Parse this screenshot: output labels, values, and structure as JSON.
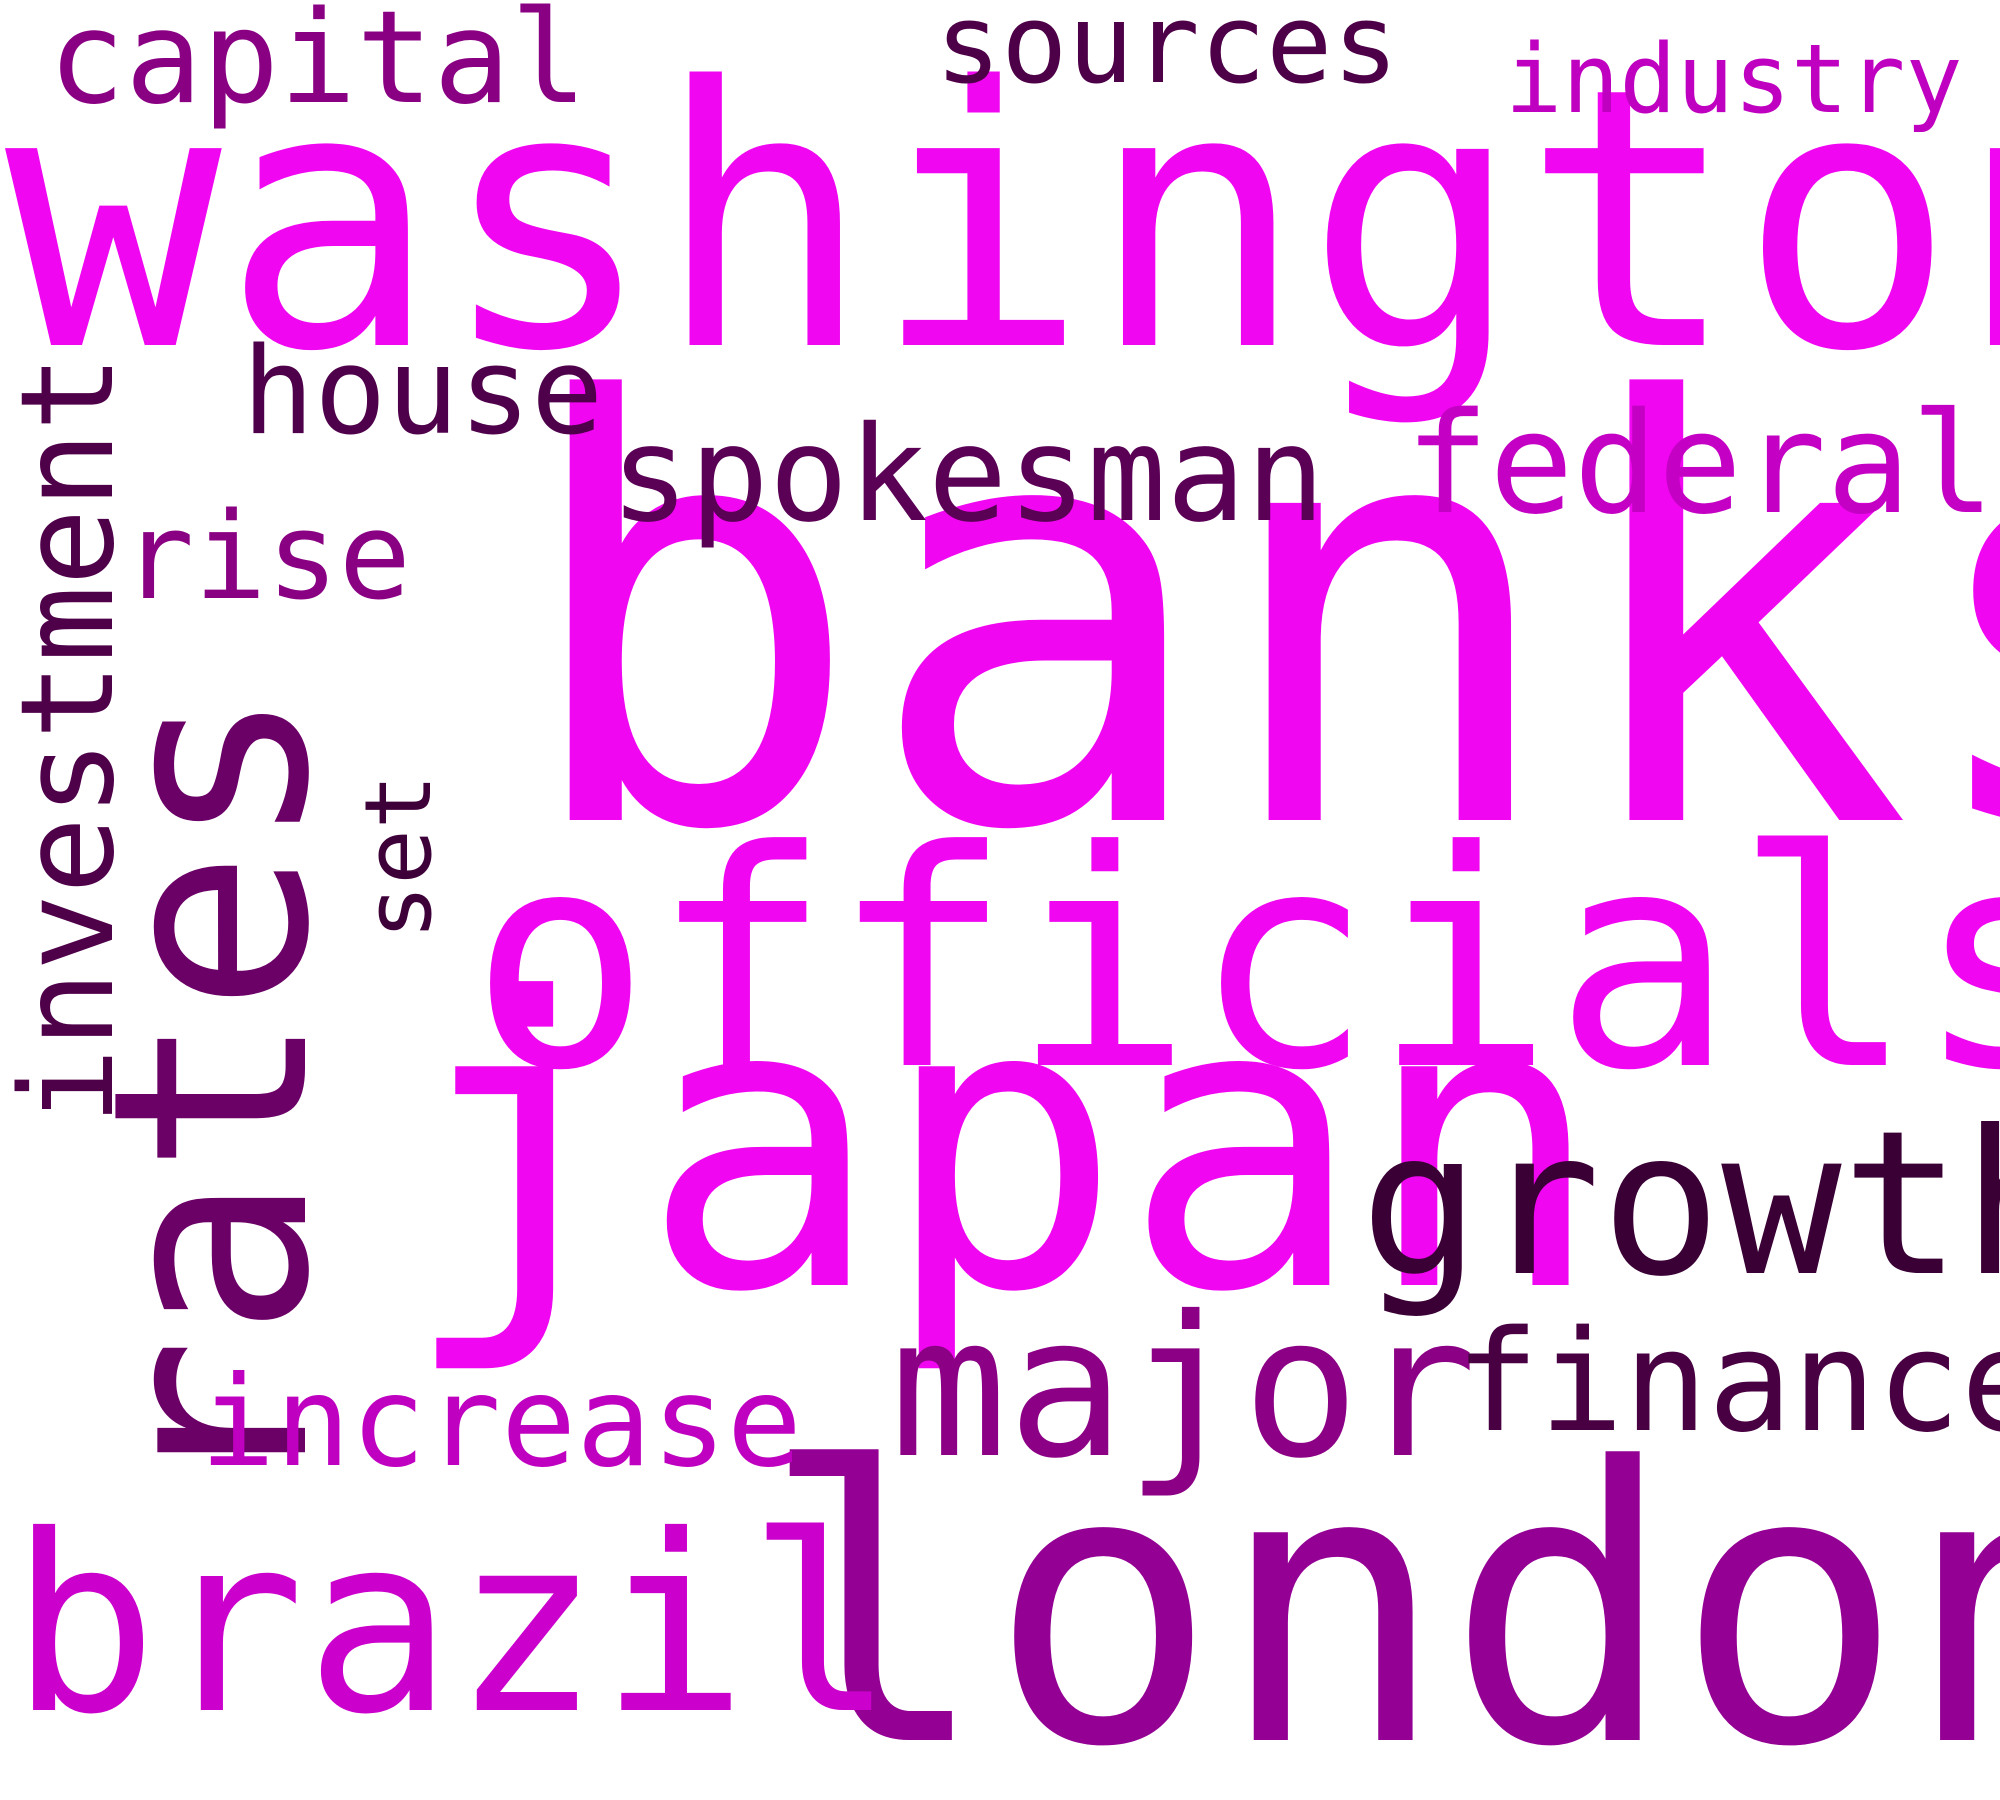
{
  "words": [
    {
      "text": "banks",
      "color": "#f006f0"
    },
    {
      "text": "washington",
      "color": "#f006f0"
    },
    {
      "text": "officials",
      "color": "#f006f0"
    },
    {
      "text": "japan",
      "color": "#f006f0"
    },
    {
      "text": "rates",
      "color": "#6b0066"
    },
    {
      "text": "london",
      "color": "#930093"
    },
    {
      "text": "brazil",
      "color": "#cc00cc"
    },
    {
      "text": "growth",
      "color": "#3a0035"
    },
    {
      "text": "major",
      "color": "#8c0085"
    },
    {
      "text": "investment",
      "color": "#4e0049"
    },
    {
      "text": "finance",
      "color": "#480042"
    },
    {
      "text": "spokesman",
      "color": "#5a0055"
    },
    {
      "text": "federal",
      "color": "#c400c4"
    },
    {
      "text": "increase",
      "color": "#c000c0"
    },
    {
      "text": "capital",
      "color": "#8a0083"
    },
    {
      "text": "sources",
      "color": "#4d0047"
    },
    {
      "text": "house",
      "color": "#4e004a"
    },
    {
      "text": "rise",
      "color": "#8a0083"
    },
    {
      "text": "industry",
      "color": "#c000c0"
    },
    {
      "text": "set",
      "color": "#3e0039"
    }
  ]
}
